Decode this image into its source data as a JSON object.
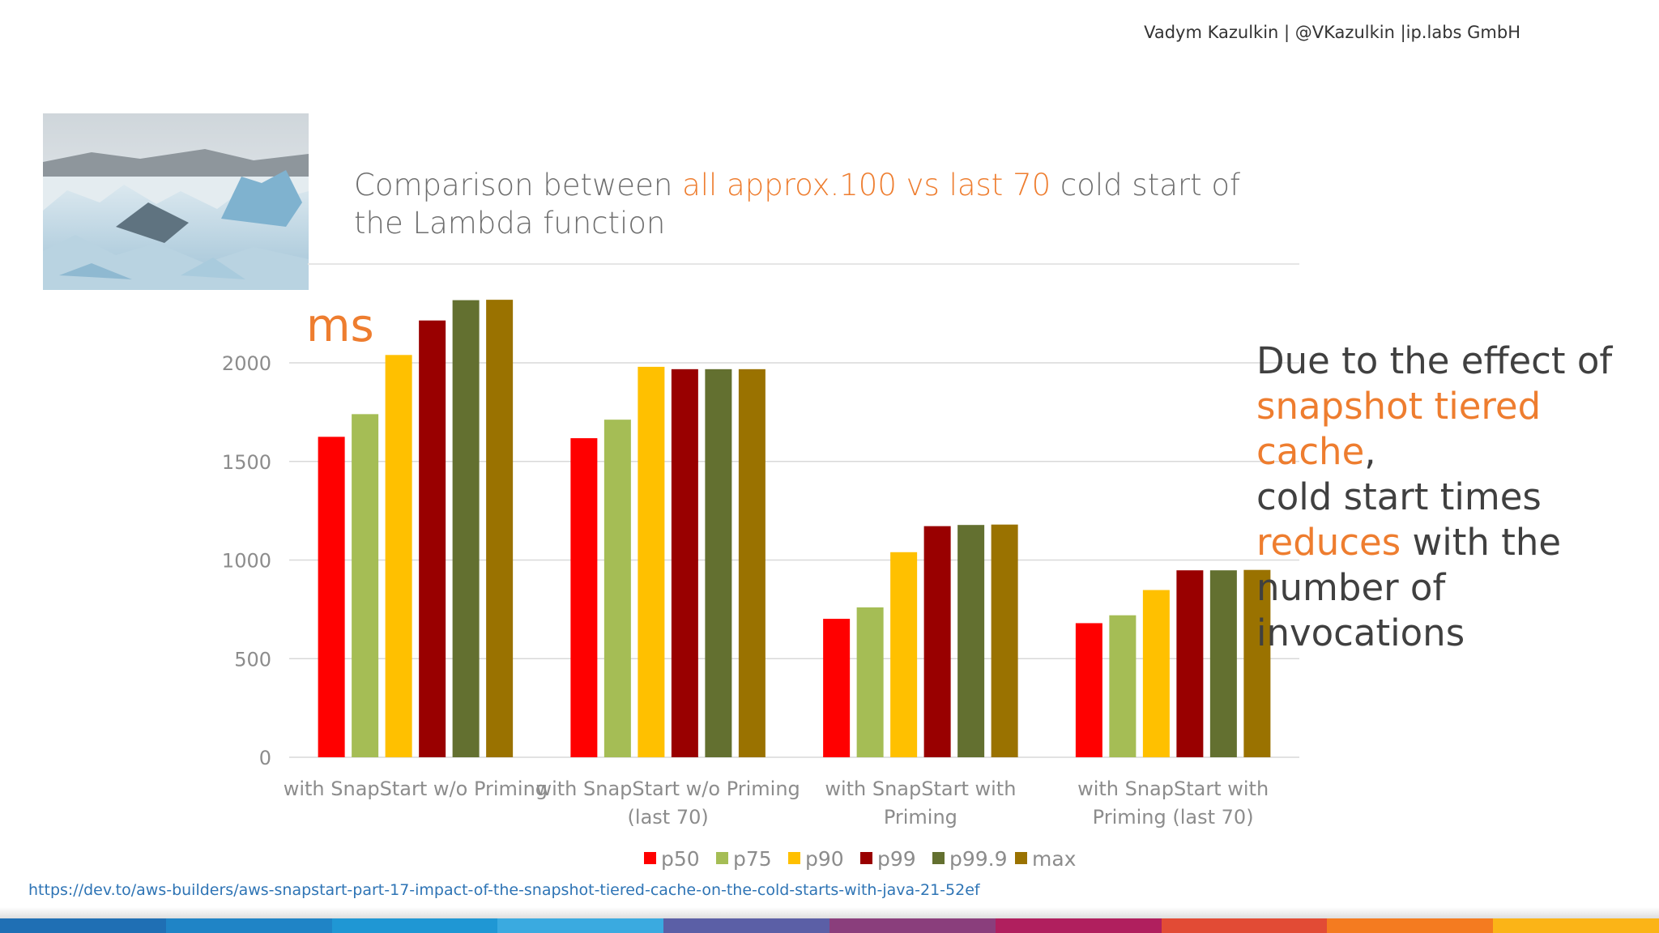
{
  "header": {
    "author": "Vadym Kazulkin | @VKazulkin |ip.labs GmbH"
  },
  "title": {
    "part1": "Comparison between ",
    "highlight": "all approx.100 vs last 70",
    "part2": " cold start of the Lambda function"
  },
  "unit_label": "ms",
  "side_note": {
    "line1": "Due to the effect of",
    "highlight1": "snapshot tiered cache",
    "comma": ",",
    "line3": "cold start times",
    "highlight2": "reduces",
    "line4_rest": " with the",
    "line5": "number of invocations"
  },
  "source_link": "https://dev.to/aws-builders/aws-snapstart-part-17-impact-of-the-snapshot-tiered-cache-on-the-cold-starts-with-java-21-52ef",
  "colors": {
    "accent": "#ee7d2f",
    "bottom_bar": [
      "#1f6fb4",
      "#1f84c6",
      "#1f97d4",
      "#3aaae0",
      "#5b5fa6",
      "#8a3e7c",
      "#b01f5e",
      "#e24b35",
      "#f47b20",
      "#fbb417"
    ]
  },
  "chart_data": {
    "type": "bar",
    "title": "Comparison between all approx.100 vs last 70 cold start of the Lambda function",
    "ylabel": "ms",
    "xlabel": "",
    "ylim": [
      0,
      2300
    ],
    "yticks": [
      0,
      500,
      1000,
      1500,
      2000
    ],
    "grid": true,
    "legend_position": "bottom",
    "categories": [
      [
        "with SnapStart w/o Priming"
      ],
      [
        "with SnapStart w/o Priming",
        "(last 70)"
      ],
      [
        "with SnapStart with",
        "Priming"
      ],
      [
        "with SnapStart with",
        "Priming (last 70)"
      ]
    ],
    "series": [
      {
        "name": "p50",
        "color": "#ff0000",
        "values": [
          1625,
          1618,
          702,
          680
        ]
      },
      {
        "name": "p75",
        "color": "#a5bd55",
        "values": [
          1740,
          1712,
          760,
          720
        ]
      },
      {
        "name": "p90",
        "color": "#ffc000",
        "values": [
          2040,
          1980,
          1040,
          848
        ]
      },
      {
        "name": "p99",
        "color": "#990000",
        "values": [
          2215,
          1968,
          1172,
          948
        ]
      },
      {
        "name": "p99.9",
        "color": "#637030",
        "values": [
          2318,
          1968,
          1178,
          948
        ]
      },
      {
        "name": "max",
        "color": "#9a7200",
        "values": [
          2320,
          1968,
          1180,
          950
        ]
      }
    ]
  }
}
